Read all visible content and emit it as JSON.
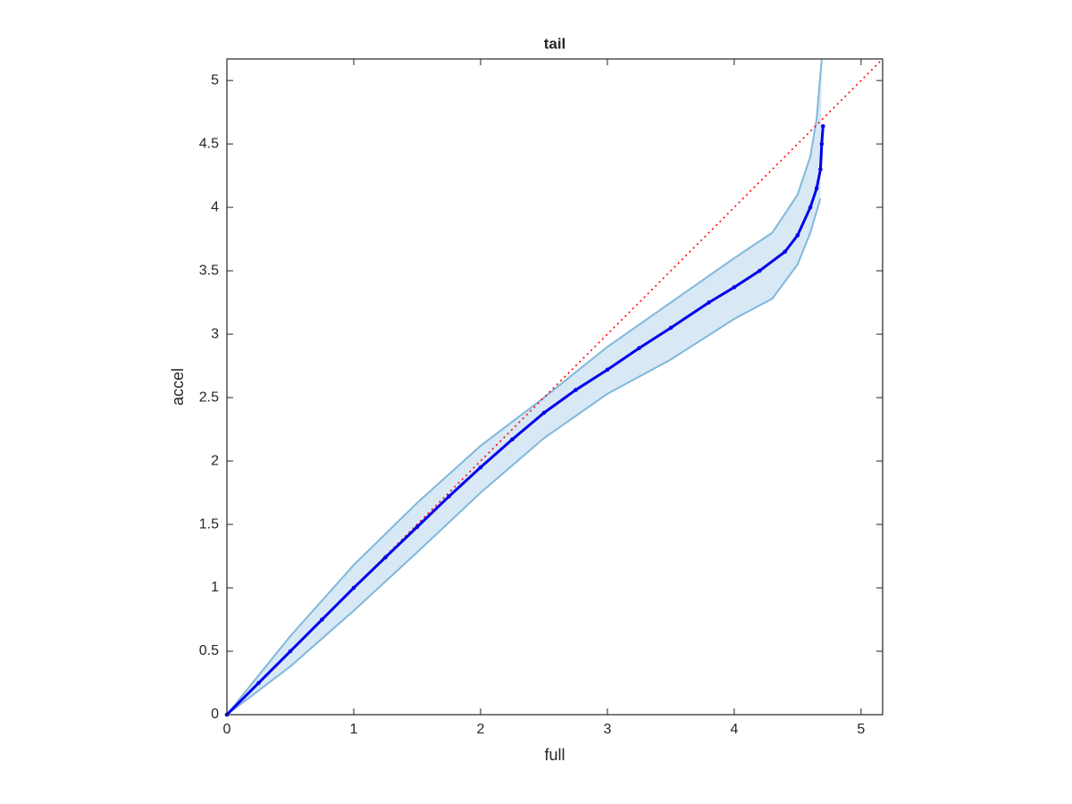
{
  "chart_data": {
    "type": "qq-band",
    "title": "tail",
    "x_label": "full",
    "y_label": "accel",
    "xlim": [
      0,
      5.17
    ],
    "ylim": [
      0,
      5.17
    ],
    "xticks": [
      0,
      1,
      2,
      3,
      4,
      5
    ],
    "yticks": [
      0,
      0.5,
      1,
      1.5,
      2,
      2.5,
      3,
      3.5,
      4,
      4.5,
      5
    ],
    "band": {
      "color": "#80b8db",
      "fill": "#d8e8f4",
      "upper": {
        "x": [
          0,
          0.5,
          1,
          1.5,
          2,
          2.5,
          3,
          3.5,
          4,
          4.3,
          4.5,
          4.6,
          4.65,
          4.69
        ],
        "values": [
          0,
          0.62,
          1.18,
          1.67,
          2.12,
          2.5,
          2.9,
          3.25,
          3.6,
          3.8,
          4.1,
          4.4,
          4.7,
          5.17
        ]
      },
      "lower": {
        "x": [
          0,
          0.5,
          1,
          1.5,
          2,
          2.5,
          3,
          3.5,
          4,
          4.3,
          4.5,
          4.6,
          4.68
        ],
        "values": [
          0,
          0.38,
          0.82,
          1.28,
          1.75,
          2.18,
          2.53,
          2.8,
          3.12,
          3.28,
          3.55,
          3.8,
          4.07
        ]
      }
    },
    "points": {
      "color": "#0000ee",
      "x": [
        0,
        0.25,
        0.5,
        0.75,
        1,
        1.25,
        1.5,
        1.75,
        2,
        2.25,
        2.5,
        2.75,
        3,
        3.25,
        3.5,
        3.8,
        4,
        4.2,
        4.4,
        4.5,
        4.6,
        4.65,
        4.68,
        4.69,
        4.7
      ],
      "values": [
        0,
        0.25,
        0.5,
        0.75,
        1,
        1.24,
        1.48,
        1.72,
        1.95,
        2.17,
        2.38,
        2.56,
        2.72,
        2.89,
        3.05,
        3.25,
        3.37,
        3.5,
        3.65,
        3.78,
        4.0,
        4.15,
        4.3,
        4.5,
        4.64
      ]
    },
    "reference": {
      "color": "#ff0000",
      "style": "dotted",
      "x": [
        0,
        5.17
      ],
      "values": [
        0,
        5.17
      ]
    }
  }
}
